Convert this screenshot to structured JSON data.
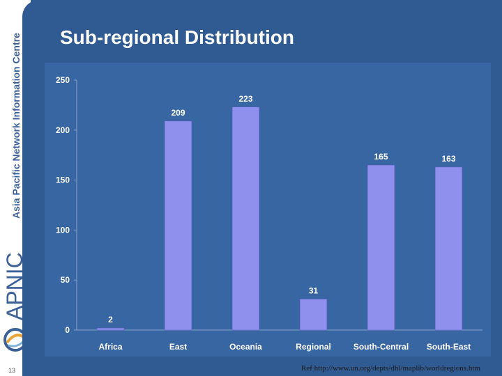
{
  "sidebar": {
    "organization": "Asia Pacific Network Information Centre",
    "logo_text": "APNIC"
  },
  "title": "Sub-regional Distribution",
  "slide_number": "13",
  "footnote": "Ref http://www.un.org/depts/dhl/maplib/worldregions.htm",
  "colors": {
    "background": "#2f5a92",
    "plot_area": "#3866a3",
    "bar": "#8f8fee",
    "text": "#ffffff",
    "sidebar": "#ffffff"
  },
  "chart_data": {
    "type": "bar",
    "title": "Sub-regional Distribution",
    "categories": [
      "Africa",
      "East",
      "Oceania",
      "Regional",
      "South-Central",
      "South-East"
    ],
    "values": [
      2,
      209,
      223,
      31,
      165,
      163
    ],
    "ylim": [
      0,
      250
    ],
    "yticks": [
      0,
      50,
      100,
      150,
      200,
      250
    ],
    "data_labels": true,
    "grid": false,
    "legend": "none"
  }
}
